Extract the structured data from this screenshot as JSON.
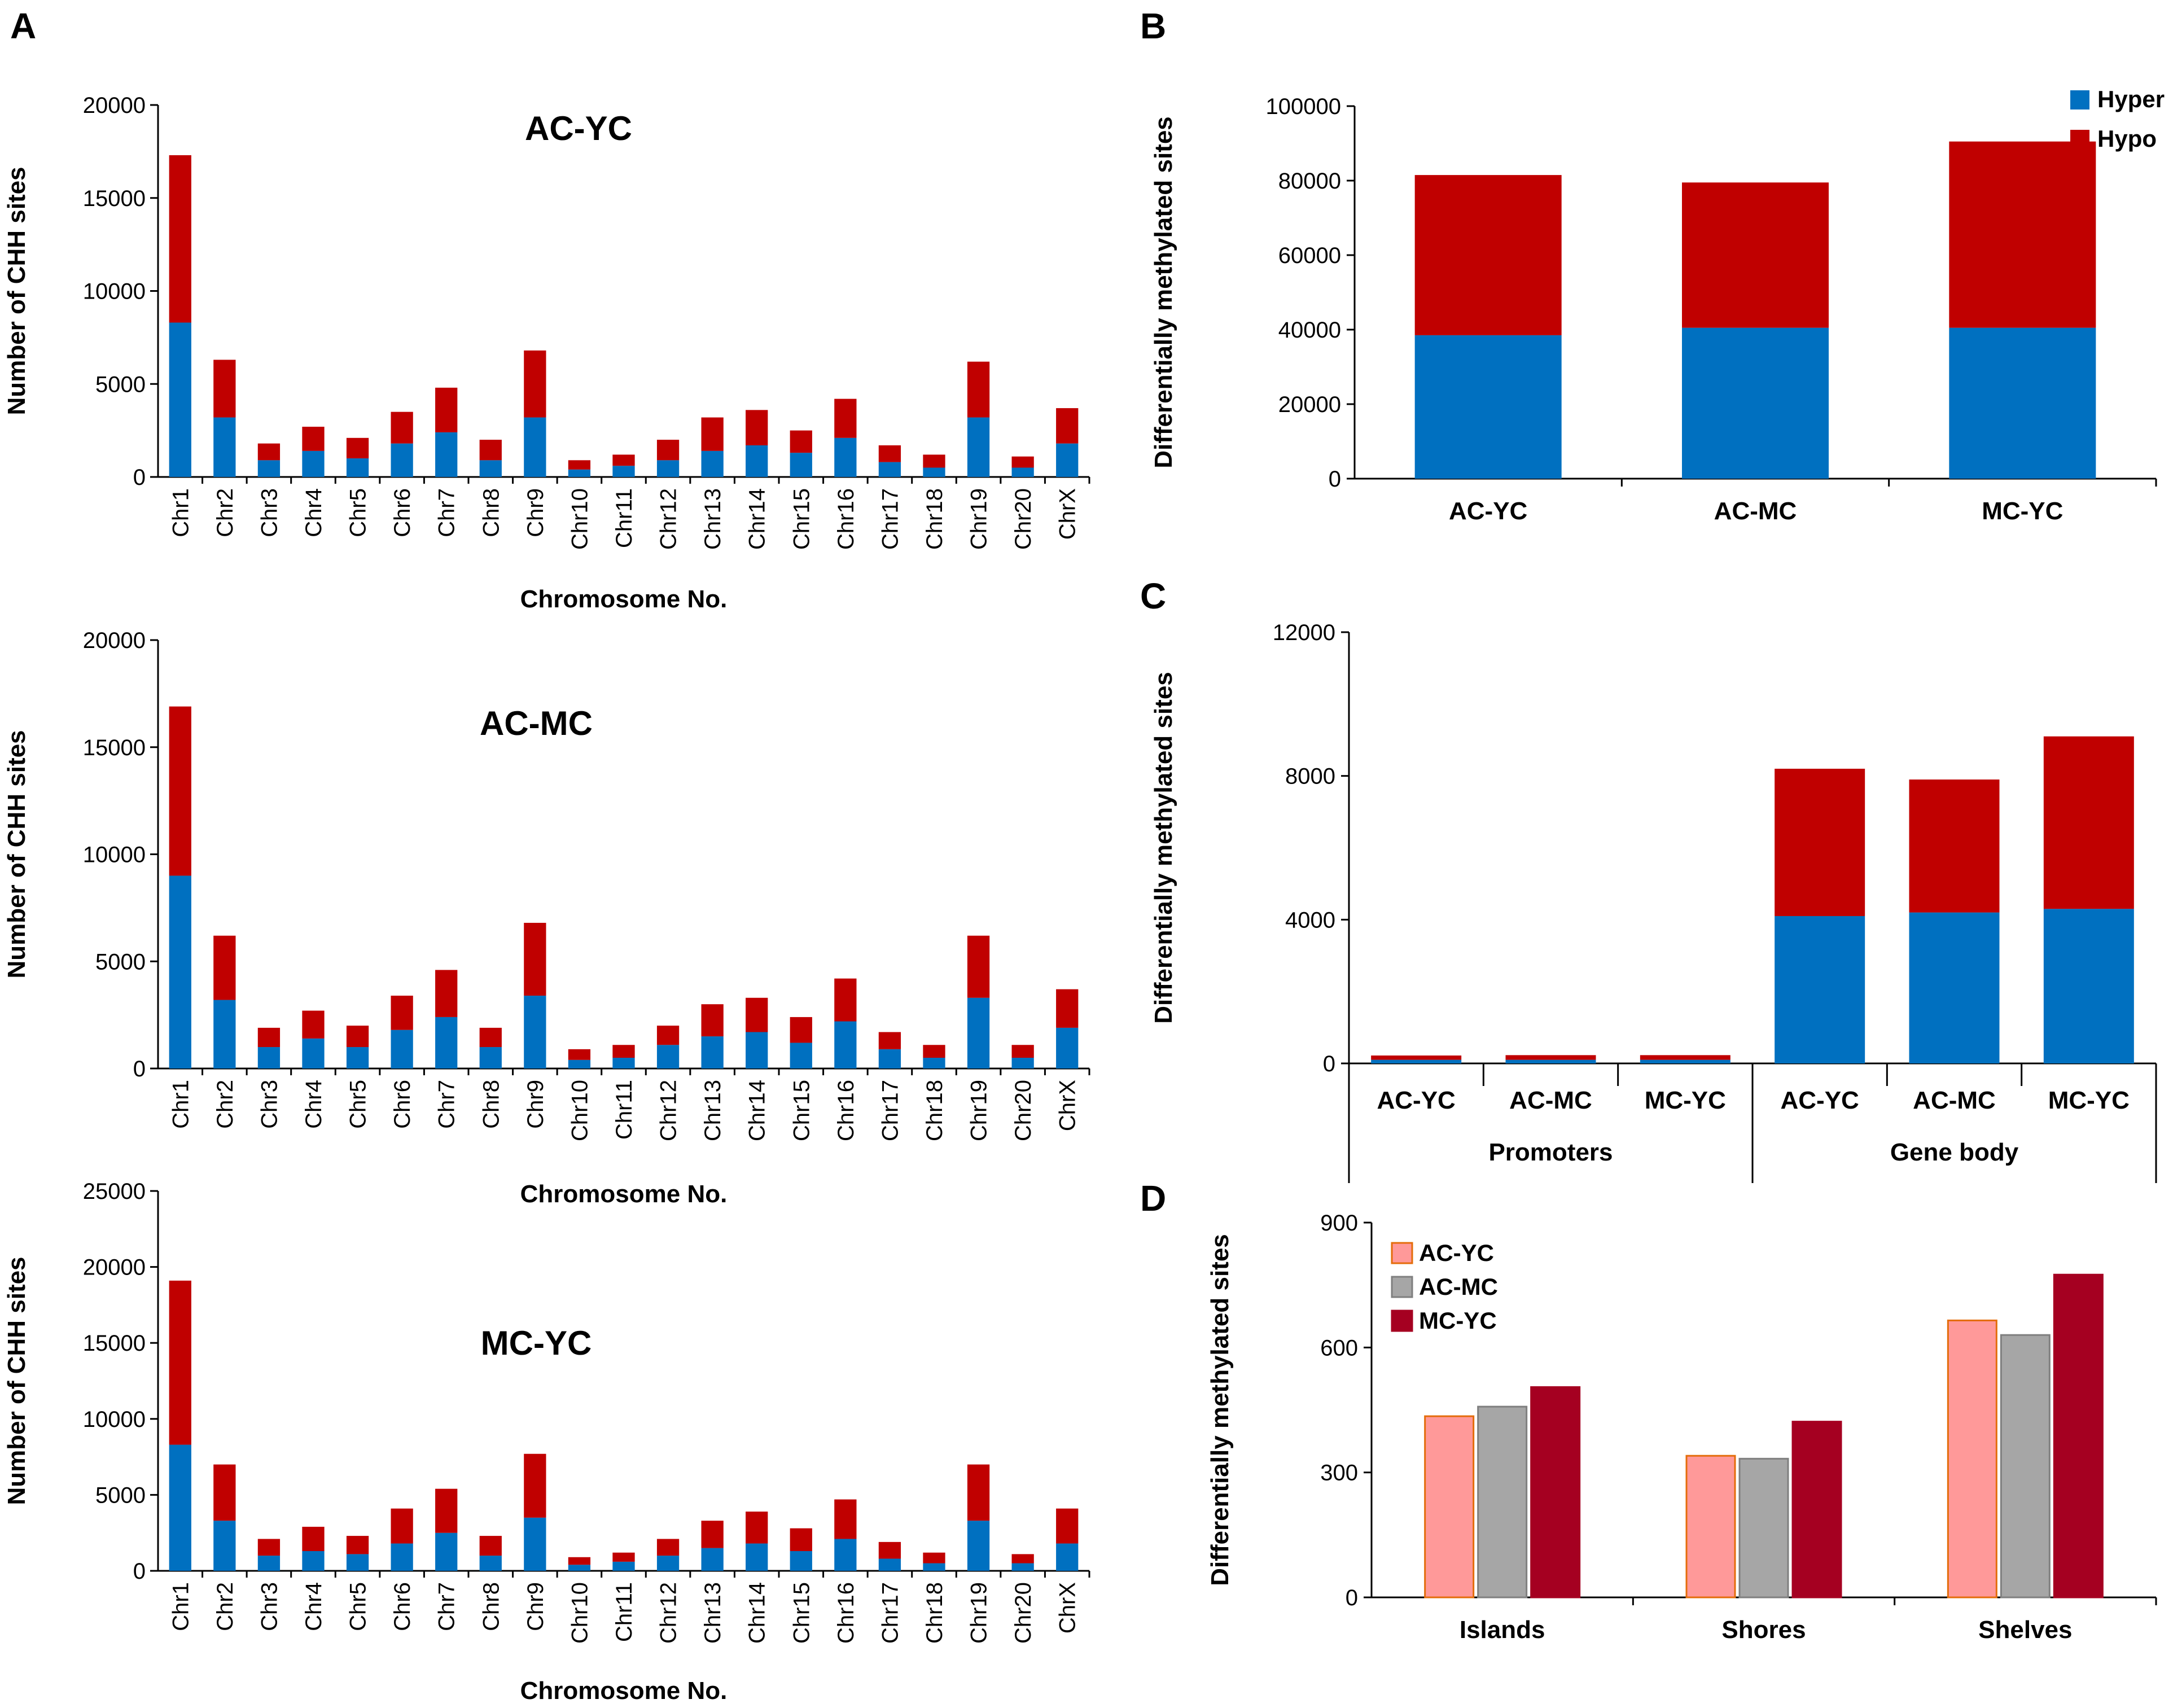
{
  "panel_labels": {
    "a": "A",
    "b": "B",
    "c": "C",
    "d": "D"
  },
  "colors": {
    "hyper": "#0070C0",
    "hypo": "#C00000",
    "ac_yc": "#FF9999",
    "ac_yc_edge": "#E46C0A",
    "ac_mc": "#A6A6A6",
    "ac_mc_edge": "#7F7F7F",
    "mc_yc": "#A50021"
  },
  "chart_data": [
    {
      "id": "A1",
      "type": "bar",
      "stacked": true,
      "title": "AC-YC",
      "xlabel": "Chromosome No.",
      "ylabel": "Number of CHH sites",
      "ylim": [
        0,
        20000
      ],
      "yticks": [
        0,
        5000,
        10000,
        15000,
        20000
      ],
      "categories": [
        "Chr1",
        "Chr2",
        "Chr3",
        "Chr4",
        "Chr5",
        "Chr6",
        "Chr7",
        "Chr8",
        "Chr9",
        "Chr10",
        "Chr11",
        "Chr12",
        "Chr13",
        "Chr14",
        "Chr15",
        "Chr16",
        "Chr17",
        "Chr18",
        "Chr19",
        "Chr20",
        "ChrX"
      ],
      "series": [
        {
          "name": "Hyper",
          "values": [
            8300,
            3200,
            900,
            1400,
            1000,
            1800,
            2400,
            900,
            3200,
            400,
            600,
            900,
            1400,
            1700,
            1300,
            2100,
            800,
            500,
            3200,
            500,
            1800
          ]
        },
        {
          "name": "Hypo",
          "values": [
            9000,
            3100,
            900,
            1300,
            1100,
            1700,
            2400,
            1100,
            3600,
            500,
            600,
            1100,
            1800,
            1900,
            1200,
            2100,
            900,
            700,
            3000,
            600,
            1900
          ]
        }
      ]
    },
    {
      "id": "A2",
      "type": "bar",
      "stacked": true,
      "title": "AC-MC",
      "xlabel": "Chromosome No.",
      "ylabel": "Number of CHH sites",
      "ylim": [
        0,
        20000
      ],
      "yticks": [
        0,
        5000,
        10000,
        15000,
        20000
      ],
      "categories": [
        "Chr1",
        "Chr2",
        "Chr3",
        "Chr4",
        "Chr5",
        "Chr6",
        "Chr7",
        "Chr8",
        "Chr9",
        "Chr10",
        "Chr11",
        "Chr12",
        "Chr13",
        "Chr14",
        "Chr15",
        "Chr16",
        "Chr17",
        "Chr18",
        "Chr19",
        "Chr20",
        "ChrX"
      ],
      "series": [
        {
          "name": "Hyper",
          "values": [
            9000,
            3200,
            1000,
            1400,
            1000,
            1800,
            2400,
            1000,
            3400,
            400,
            500,
            1100,
            1500,
            1700,
            1200,
            2200,
            900,
            500,
            3300,
            500,
            1900
          ]
        },
        {
          "name": "Hypo",
          "values": [
            7900,
            3000,
            900,
            1300,
            1000,
            1600,
            2200,
            900,
            3400,
            500,
            600,
            900,
            1500,
            1600,
            1200,
            2000,
            800,
            600,
            2900,
            600,
            1800
          ]
        }
      ]
    },
    {
      "id": "A3",
      "type": "bar",
      "stacked": true,
      "title": "MC-YC",
      "xlabel": "Chromosome No.",
      "ylabel": "Number of CHH sites",
      "ylim": [
        0,
        25000
      ],
      "yticks": [
        0,
        5000,
        10000,
        15000,
        20000,
        25000
      ],
      "categories": [
        "Chr1",
        "Chr2",
        "Chr3",
        "Chr4",
        "Chr5",
        "Chr6",
        "Chr7",
        "Chr8",
        "Chr9",
        "Chr10",
        "Chr11",
        "Chr12",
        "Chr13",
        "Chr14",
        "Chr15",
        "Chr16",
        "Chr17",
        "Chr18",
        "Chr19",
        "Chr20",
        "ChrX"
      ],
      "series": [
        {
          "name": "Hyper",
          "values": [
            8300,
            3300,
            1000,
            1300,
            1100,
            1800,
            2500,
            1000,
            3500,
            400,
            600,
            1000,
            1500,
            1800,
            1300,
            2100,
            800,
            500,
            3300,
            500,
            1800
          ]
        },
        {
          "name": "Hypo",
          "values": [
            10800,
            3700,
            1100,
            1600,
            1200,
            2300,
            2900,
            1300,
            4200,
            500,
            600,
            1100,
            1800,
            2100,
            1500,
            2600,
            1100,
            700,
            3700,
            600,
            2300
          ]
        }
      ]
    },
    {
      "id": "B",
      "type": "bar",
      "stacked": true,
      "ylabel": "Differentially methylated sites",
      "ylim": [
        0,
        100000
      ],
      "yticks": [
        0,
        20000,
        40000,
        60000,
        80000,
        100000
      ],
      "categories": [
        "AC-YC",
        "AC-MC",
        "MC-YC"
      ],
      "series": [
        {
          "name": "Hyper",
          "values": [
            38500,
            40500,
            40500
          ]
        },
        {
          "name": "Hypo",
          "values": [
            43000,
            39000,
            50000
          ]
        }
      ],
      "legend": "top-right"
    },
    {
      "id": "C",
      "type": "bar",
      "stacked": true,
      "ylabel": "Differentially methylated sites",
      "ylim": [
        0,
        12000
      ],
      "yticks": [
        0,
        4000,
        8000,
        12000
      ],
      "categories": [
        "AC-YC",
        "AC-MC",
        "MC-YC",
        "AC-YC",
        "AC-MC",
        "MC-YC"
      ],
      "groups": [
        "Promoters",
        "Gene body"
      ],
      "series": [
        {
          "name": "Hyper",
          "values": [
            100,
            100,
            100,
            4100,
            4200,
            4300
          ]
        },
        {
          "name": "Hypo",
          "values": [
            120,
            130,
            130,
            4100,
            3700,
            4800
          ]
        }
      ]
    },
    {
      "id": "D",
      "type": "bar",
      "stacked": false,
      "ylabel": "Differentially methylated sites",
      "ylim": [
        0,
        900
      ],
      "yticks": [
        0,
        300,
        600,
        900
      ],
      "categories": [
        "Islands",
        "Shores",
        "Shelves"
      ],
      "series": [
        {
          "name": "AC-YC",
          "values": [
            435,
            340,
            665
          ]
        },
        {
          "name": "AC-MC",
          "values": [
            458,
            333,
            630
          ]
        },
        {
          "name": "MC-YC",
          "values": [
            505,
            422,
            775
          ]
        }
      ],
      "legend": "top-left"
    }
  ]
}
